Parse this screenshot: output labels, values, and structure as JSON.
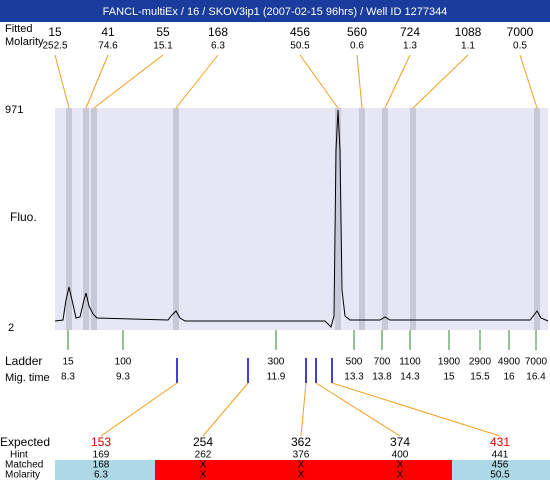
{
  "title": "FANCL-multiEx / 16 / SKOV3ip1 (2007-02-15 96hrs) / Well ID 1277344",
  "top_labels": [
    "Fitted",
    "Molarity"
  ],
  "peaks": [
    {
      "size": "15",
      "molarity": "252.5"
    },
    {
      "size": "41",
      "molarity": "74.6"
    },
    {
      "size": "55",
      "molarity": "15.1"
    },
    {
      "size": "168",
      "molarity": "6.3"
    },
    {
      "size": "456",
      "molarity": "50.5"
    },
    {
      "size": "560",
      "molarity": "0.6"
    },
    {
      "size": "724",
      "molarity": "1.3"
    },
    {
      "size": "1088",
      "molarity": "1.1"
    },
    {
      "size": "7000",
      "molarity": "0.5"
    }
  ],
  "y_axis": {
    "top": "971",
    "bottom": "2",
    "label": "Fluo."
  },
  "ladder": {
    "label": "Ladder",
    "time_label": "Mig. time",
    "items": [
      {
        "size": "15",
        "time": "8.3"
      },
      {
        "size": "100",
        "time": "9.3"
      },
      {
        "size": "300",
        "time": "11.9"
      },
      {
        "size": "500",
        "time": "13.3"
      },
      {
        "size": "700",
        "time": "13.8"
      },
      {
        "size": "1100",
        "time": "14.3"
      },
      {
        "size": "1900",
        "time": "15"
      },
      {
        "size": "2900",
        "time": "15.5"
      },
      {
        "size": "4900",
        "time": "16"
      },
      {
        "size": "7000",
        "time": "16.4"
      }
    ]
  },
  "expected_table": {
    "row_labels": [
      "Expected",
      "Hint",
      "Matched",
      "Molarity"
    ],
    "columns": [
      {
        "expected": "153",
        "hint": "169",
        "matched": "168",
        "molarity": "6.3",
        "highlight": true
      },
      {
        "expected": "254",
        "hint": "262",
        "matched": "X",
        "molarity": "X",
        "highlight": false
      },
      {
        "expected": "362",
        "hint": "376",
        "matched": "X",
        "molarity": "X",
        "highlight": false
      },
      {
        "expected": "374",
        "hint": "400",
        "matched": "X",
        "molarity": "X",
        "highlight": false
      },
      {
        "expected": "431",
        "hint": "441",
        "matched": "456",
        "molarity": "50.5",
        "highlight": true
      }
    ]
  }
}
